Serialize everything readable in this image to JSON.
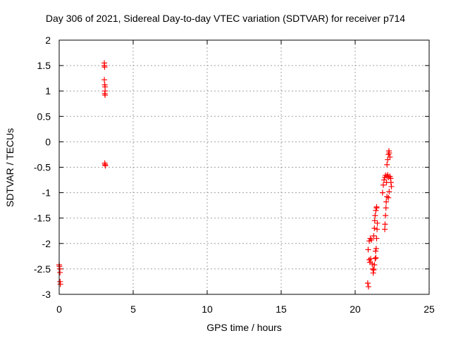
{
  "chart_data": {
    "type": "scatter",
    "title": "Day 306 of 2021, Sidereal Day-to-day VTEC variation (SDTVAR) for receiver p714",
    "xlabel": "GPS time / hours",
    "ylabel": "SDTVAR / TECUs",
    "xlim": [
      0,
      25
    ],
    "ylim": [
      -3,
      2
    ],
    "xticks": [
      "0",
      "5",
      "10",
      "15",
      "20",
      "25"
    ],
    "yticks": [
      "-3",
      "-2.5",
      "-2",
      "-1.5",
      "-1",
      "-0.5",
      "0",
      "0.5",
      "1",
      "1.5",
      "2"
    ],
    "grid": true,
    "marker": "+",
    "color": "#ff0000",
    "series": [
      {
        "name": "SDTVAR",
        "points": [
          [
            0.0,
            -2.42
          ],
          [
            0.02,
            -2.45
          ],
          [
            0.04,
            -2.5
          ],
          [
            0.05,
            -2.57
          ],
          [
            0.06,
            -2.75
          ],
          [
            0.08,
            -2.8
          ],
          [
            3.05,
            1.55
          ],
          [
            3.06,
            1.5
          ],
          [
            3.07,
            1.47
          ],
          [
            3.05,
            1.22
          ],
          [
            3.08,
            1.12
          ],
          [
            3.1,
            1.08
          ],
          [
            3.1,
            1.0
          ],
          [
            3.08,
            0.95
          ],
          [
            3.1,
            0.92
          ],
          [
            3.08,
            -0.42
          ],
          [
            3.1,
            -0.45
          ],
          [
            3.12,
            -0.47
          ],
          [
            20.85,
            -2.78
          ],
          [
            20.9,
            -2.85
          ],
          [
            20.88,
            -2.12
          ],
          [
            20.95,
            -2.32
          ],
          [
            21.0,
            -2.37
          ],
          [
            21.05,
            -2.3
          ],
          [
            20.95,
            -1.95
          ],
          [
            21.02,
            -1.9
          ],
          [
            21.1,
            -1.93
          ],
          [
            21.15,
            -2.4
          ],
          [
            21.2,
            -2.5
          ],
          [
            21.22,
            -2.58
          ],
          [
            21.25,
            -2.52
          ],
          [
            21.3,
            -2.42
          ],
          [
            21.35,
            -2.3
          ],
          [
            21.4,
            -2.28
          ],
          [
            21.25,
            -1.85
          ],
          [
            21.3,
            -1.7
          ],
          [
            21.32,
            -1.55
          ],
          [
            21.35,
            -1.45
          ],
          [
            21.4,
            -1.35
          ],
          [
            21.45,
            -1.3
          ],
          [
            21.42,
            -2.1
          ],
          [
            21.45,
            -1.9
          ],
          [
            21.48,
            -1.72
          ],
          [
            21.5,
            -1.6
          ],
          [
            21.38,
            -2.15
          ],
          [
            21.45,
            -1.28
          ],
          [
            21.85,
            -1.0
          ],
          [
            21.9,
            -0.85
          ],
          [
            21.95,
            -0.75
          ],
          [
            22.0,
            -0.7
          ],
          [
            22.05,
            -0.66
          ],
          [
            22.0,
            -1.72
          ],
          [
            22.02,
            -1.62
          ],
          [
            22.05,
            -1.45
          ],
          [
            22.08,
            -1.3
          ],
          [
            22.1,
            -1.18
          ],
          [
            22.15,
            -1.08
          ],
          [
            22.12,
            -0.8
          ],
          [
            22.15,
            -0.68
          ],
          [
            22.2,
            -0.65
          ],
          [
            22.25,
            -0.7
          ],
          [
            22.15,
            -0.45
          ],
          [
            22.2,
            -0.35
          ],
          [
            22.25,
            -0.25
          ],
          [
            22.28,
            -0.18
          ],
          [
            22.3,
            -0.22
          ],
          [
            22.35,
            -0.3
          ],
          [
            22.35,
            -0.68
          ],
          [
            22.4,
            -0.72
          ],
          [
            22.42,
            -0.8
          ],
          [
            22.45,
            -0.88
          ],
          [
            22.3,
            -0.98
          ],
          [
            22.25,
            -1.1
          ]
        ]
      }
    ]
  }
}
